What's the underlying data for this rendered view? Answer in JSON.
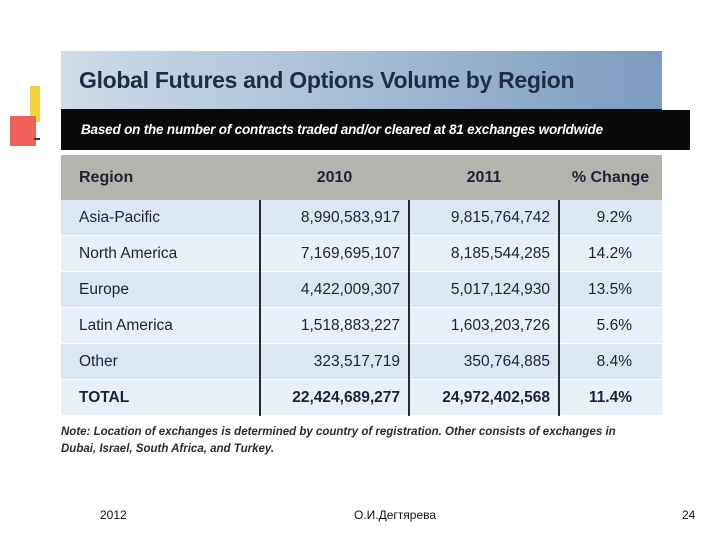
{
  "figure": {
    "title": "Global Futures and Options Volume by Region",
    "subtitle": "Based on the number of contracts traded and/or cleared at 81 exchanges worldwide",
    "columns": [
      "Region",
      "2010",
      "2011",
      "% Change"
    ],
    "rows": [
      {
        "region": "Asia-Pacific",
        "v2010": "8,990,583,917",
        "v2011": "9,815,764,742",
        "pct": "9.2%"
      },
      {
        "region": "North America",
        "v2010": "7,169,695,107",
        "v2011": "8,185,544,285",
        "pct": "14.2%"
      },
      {
        "region": "Europe",
        "v2010": "4,422,009,307",
        "v2011": "5,017,124,930",
        "pct": "13.5%"
      },
      {
        "region": "Latin America",
        "v2010": "1,518,883,227",
        "v2011": "1,603,203,726",
        "pct": "5.6%"
      },
      {
        "region": "Other",
        "v2010": "323,517,719",
        "v2011": "350,764,885",
        "pct": "8.4%"
      }
    ],
    "total": {
      "region": "TOTAL",
      "v2010": "22,424,689,277",
      "v2011": "24,972,402,568",
      "pct": "11.4%"
    },
    "note": "Note: Location of exchanges is determined by country of registration. Other consists of exchanges in Dubai, Israel, South Africa, and Turkey."
  },
  "footer": {
    "year": "2012",
    "author": "О.И.Дегтярева",
    "page_number": "24"
  }
}
